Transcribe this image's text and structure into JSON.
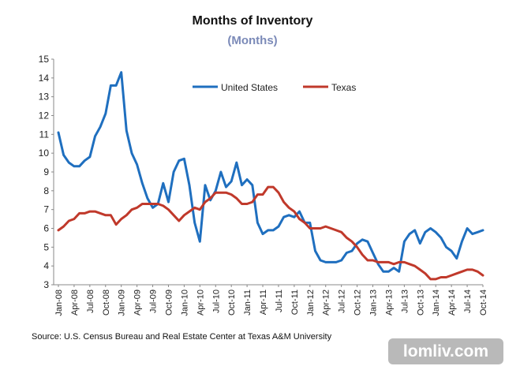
{
  "chart_data": {
    "type": "line",
    "title": "Months of Inventory",
    "subtitle": "(Months)",
    "xlabel": "",
    "ylabel": "",
    "ylim": [
      3,
      15
    ],
    "yticks": [
      3,
      4,
      5,
      6,
      7,
      8,
      9,
      10,
      11,
      12,
      13,
      14,
      15
    ],
    "x_tick_labels": [
      "Jan-08",
      "Apr-08",
      "Jul-08",
      "Oct-08",
      "Jan-09",
      "Apr-09",
      "Jul-09",
      "Oct-09",
      "Jan-10",
      "Apr-10",
      "Jul-10",
      "Oct-10",
      "Jan-11",
      "Apr-11",
      "Jul-11",
      "Oct-11",
      "Jan-12",
      "Apr-12",
      "Jul-12",
      "Oct-12",
      "Jan-13",
      "Apr-13",
      "Jul-13",
      "Oct-13",
      "Jan-14",
      "Apr-14",
      "Jul-14",
      "Oct-14"
    ],
    "x_start": "Jan-08",
    "x_interval": "monthly",
    "legend_position": "top-center",
    "series": [
      {
        "name": "United States",
        "color": "#1f6fbf",
        "values": [
          11.1,
          9.9,
          9.5,
          9.3,
          9.3,
          9.6,
          9.8,
          10.9,
          11.4,
          12.1,
          13.6,
          13.6,
          14.3,
          11.2,
          10.0,
          9.4,
          8.4,
          7.6,
          7.1,
          7.3,
          8.4,
          7.4,
          9.0,
          9.6,
          9.7,
          8.3,
          6.3,
          5.3,
          8.3,
          7.5,
          8.0,
          9.0,
          8.2,
          8.5,
          9.5,
          8.3,
          8.6,
          8.3,
          6.3,
          5.7,
          5.9,
          5.9,
          6.1,
          6.6,
          6.7,
          6.6,
          6.9,
          6.3,
          6.3,
          4.8,
          4.3,
          4.2,
          4.2,
          4.2,
          4.3,
          4.7,
          4.8,
          5.2,
          5.4,
          5.3,
          4.7,
          4.1,
          3.7,
          3.7,
          3.9,
          3.7,
          5.3,
          5.7,
          5.9,
          5.2,
          5.8,
          6.0,
          5.8,
          5.5,
          5.0,
          4.8,
          4.4,
          5.3,
          6.0,
          5.7,
          5.8,
          5.9
        ],
        "line_width": 3
      },
      {
        "name": "Texas",
        "color": "#c0392b",
        "values": [
          5.9,
          6.1,
          6.4,
          6.5,
          6.8,
          6.8,
          6.9,
          6.9,
          6.8,
          6.7,
          6.7,
          6.2,
          6.5,
          6.7,
          7.0,
          7.1,
          7.3,
          7.3,
          7.3,
          7.3,
          7.2,
          7.0,
          6.7,
          6.4,
          6.7,
          6.9,
          7.1,
          7.0,
          7.4,
          7.6,
          7.9,
          7.9,
          7.9,
          7.8,
          7.6,
          7.3,
          7.3,
          7.4,
          7.8,
          7.8,
          8.2,
          8.2,
          7.9,
          7.4,
          7.1,
          6.9,
          6.5,
          6.3,
          6.0,
          6.0,
          6.0,
          6.1,
          6.0,
          5.9,
          5.8,
          5.5,
          5.3,
          5.0,
          4.6,
          4.3,
          4.3,
          4.2,
          4.2,
          4.2,
          4.1,
          4.2,
          4.2,
          4.1,
          4.0,
          3.8,
          3.6,
          3.3,
          3.3,
          3.4,
          3.4,
          3.5,
          3.6,
          3.7,
          3.8,
          3.8,
          3.7,
          3.5
        ],
        "line_width": 3
      }
    ],
    "source": "Source: U.S. Census Bureau and Real Estate Center at Texas A&M University"
  },
  "watermark": "lomliv.com"
}
